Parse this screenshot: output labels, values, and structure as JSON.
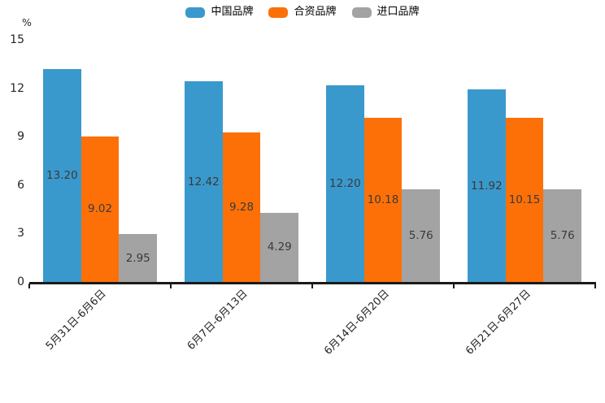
{
  "chart_data": {
    "type": "bar",
    "title": "",
    "legend_position": "top",
    "grid": false,
    "value_label_position": "inside-center",
    "y_axis": {
      "unit_label": "%",
      "min": 0,
      "max": 15,
      "ticks": [
        0,
        3,
        6,
        9,
        12,
        15
      ],
      "tick_labels": [
        "0",
        "3",
        "6",
        "9",
        "12",
        "15"
      ]
    },
    "categories": [
      "5月31日-6月6日",
      "6月7日-6月13日",
      "6月14日-6月20日",
      "6月21日-6月27日"
    ],
    "series": [
      {
        "name": "中国品牌",
        "color": "#3a99cc",
        "values": [
          13.2,
          12.42,
          12.2,
          11.92
        ],
        "value_labels": [
          "13.20",
          "12.42",
          "12.20",
          "11.92"
        ]
      },
      {
        "name": "合资品牌",
        "color": "#fd7008",
        "values": [
          9.02,
          9.28,
          10.18,
          10.15
        ],
        "value_labels": [
          "9.02",
          "9.28",
          "10.18",
          "10.15"
        ]
      },
      {
        "name": "进口品牌",
        "color": "#a3a3a3",
        "values": [
          2.95,
          4.29,
          5.76,
          5.76
        ],
        "value_labels": [
          "2.95",
          "4.29",
          "5.76",
          "5.76"
        ]
      }
    ],
    "colors": {
      "axis": "#1a1a1a",
      "tick_label": "#262626",
      "value_label": "#3a3a3a",
      "background": "#ffffff"
    }
  }
}
